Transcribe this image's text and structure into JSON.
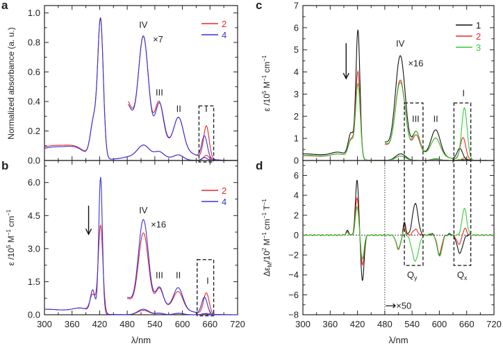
{
  "chart_data": [
    {
      "panel": "a",
      "type": "line",
      "ylabel": [
        {
          "t": "Normalized absorbance (a. u.)"
        }
      ],
      "xlim": [
        300,
        720
      ],
      "ylim": [
        0,
        1.05
      ],
      "yticks": [
        "0.0",
        "0.2",
        "0.4",
        "0.6",
        "0.8",
        "1.0"
      ],
      "ytick_values": [
        0,
        0.2,
        0.4,
        0.6,
        0.8,
        1.0
      ],
      "yminor_step": 0.1,
      "legend": [
        {
          "name": "2",
          "color": "#e8262b"
        },
        {
          "name": "4",
          "color": "#3333dd"
        }
      ],
      "annotations": [
        "IV",
        "×7",
        "III",
        "II",
        "I"
      ],
      "series": [
        {
          "name": "2",
          "color": "#e8262b",
          "x_range": [
            300,
            720
          ],
          "peaks": [
            [
              320,
              0.1,
              45
            ],
            [
              370,
              0.04,
              20
            ],
            [
              422,
              0.93,
              6
            ],
            [
              407,
              0.25,
              7
            ],
            [
              515,
              0.065,
              12
            ],
            [
              550,
              0.03,
              9
            ],
            [
              592,
              0.03,
              10
            ],
            [
              652,
              0.035,
              6
            ],
            [
              520,
              0.04,
              40
            ]
          ]
        },
        {
          "name": "4",
          "color": "#3333dd",
          "x_range": [
            300,
            720
          ],
          "peaks": [
            [
              320,
              0.09,
              45
            ],
            [
              370,
              0.04,
              20
            ],
            [
              422,
              0.93,
              6
            ],
            [
              407,
              0.25,
              7
            ],
            [
              515,
              0.065,
              12
            ],
            [
              550,
              0.03,
              9
            ],
            [
              592,
              0.03,
              10
            ],
            [
              648,
              0.02,
              6
            ],
            [
              520,
              0.04,
              40
            ]
          ]
        },
        {
          "name": "2 ×7",
          "color": "#e8262b",
          "x_range": [
            482,
            720
          ],
          "peaks": [
            [
              515,
              0.76,
              11
            ],
            [
              549,
              0.28,
              9
            ],
            [
              592,
              0.2,
              10
            ],
            [
              652,
              0.22,
              6
            ],
            [
              478,
              0.38,
              14
            ],
            [
              560,
              0.12,
              45
            ]
          ]
        },
        {
          "name": "4 ×7",
          "color": "#3333dd",
          "x_range": [
            482,
            720
          ],
          "peaks": [
            [
              515,
              0.76,
              11
            ],
            [
              550,
              0.27,
              9
            ],
            [
              592,
              0.2,
              10
            ],
            [
              648,
              0.15,
              6
            ],
            [
              478,
              0.36,
              14
            ],
            [
              560,
              0.12,
              45
            ]
          ]
        }
      ]
    },
    {
      "panel": "b",
      "type": "line",
      "ylabel": [
        {
          "t": "ε /10"
        },
        {
          "t": "5",
          "sup": true
        },
        {
          "t": " M"
        },
        {
          "t": "−1",
          "sup": true
        },
        {
          "t": " cm"
        },
        {
          "t": "−1",
          "sup": true
        }
      ],
      "xlabel": "λ/nm",
      "xlim": [
        300,
        720
      ],
      "xticks": [
        "300",
        "360",
        "420",
        "480",
        "540",
        "600",
        "660",
        "720"
      ],
      "xtick_values": [
        300,
        360,
        420,
        480,
        540,
        600,
        660,
        720
      ],
      "ylim": [
        0,
        7.0
      ],
      "yticks": [
        "0.0",
        "1.5",
        "3.0",
        "4.5",
        "6.0"
      ],
      "ytick_values": [
        0,
        1.5,
        3.0,
        4.5,
        6.0
      ],
      "yminor_step": 0.75,
      "legend": [
        {
          "name": "2",
          "color": "#e8262b"
        },
        {
          "name": "4",
          "color": "#3333dd"
        }
      ],
      "annotations": [
        "IV",
        "×16",
        "III",
        "II",
        "I"
      ],
      "series": [
        {
          "name": "2",
          "color": "#e8262b",
          "x_range": [
            300,
            720
          ],
          "peaks": [
            [
              300,
              0.25,
              60
            ],
            [
              380,
              0.2,
              18
            ],
            [
              422,
              4.0,
              5
            ],
            [
              405,
              0.8,
              6
            ],
            [
              515,
              0.2,
              12
            ],
            [
              550,
              0.06,
              9
            ],
            [
              592,
              0.06,
              10
            ],
            [
              652,
              0.06,
              6
            ]
          ]
        },
        {
          "name": "4",
          "color": "#3333dd",
          "x_range": [
            300,
            720
          ],
          "peaks": [
            [
              300,
              0.25,
              60
            ],
            [
              380,
              0.2,
              18
            ],
            [
              422,
              6.2,
              4
            ],
            [
              405,
              1.0,
              5
            ],
            [
              515,
              0.25,
              12
            ],
            [
              550,
              0.07,
              9
            ],
            [
              592,
              0.07,
              10
            ],
            [
              648,
              0.05,
              6
            ]
          ]
        },
        {
          "name": "2 ×16",
          "color": "#e8262b",
          "x_range": [
            480,
            720
          ],
          "peaks": [
            [
              515,
              3.5,
              11
            ],
            [
              550,
              0.85,
              8
            ],
            [
              591,
              0.78,
              10
            ],
            [
              652,
              0.95,
              6
            ],
            [
              478,
              0.65,
              12
            ],
            [
              560,
              0.35,
              45
            ]
          ]
        },
        {
          "name": "4 ×16",
          "color": "#3333dd",
          "x_range": [
            480,
            720
          ],
          "peaks": [
            [
              515,
              4.1,
              11
            ],
            [
              550,
              0.9,
              8
            ],
            [
              591,
              0.95,
              10
            ],
            [
              648,
              0.75,
              6
            ],
            [
              478,
              0.7,
              12
            ],
            [
              560,
              0.35,
              45
            ]
          ]
        }
      ]
    },
    {
      "panel": "c",
      "type": "line",
      "ylabel": [
        {
          "t": "ε /10"
        },
        {
          "t": "5",
          "sup": true
        },
        {
          "t": " M"
        },
        {
          "t": "−1",
          "sup": true
        },
        {
          "t": " cm"
        },
        {
          "t": "−1",
          "sup": true
        }
      ],
      "xlim": [
        300,
        720
      ],
      "ylim": [
        0,
        7
      ],
      "yticks": [
        "0",
        "1",
        "2",
        "3",
        "4",
        "5",
        "6",
        "7"
      ],
      "ytick_values": [
        0,
        1,
        2,
        3,
        4,
        5,
        6,
        7
      ],
      "yminor_step": 0.5,
      "legend": [
        {
          "name": "1",
          "color": "#111111"
        },
        {
          "name": "2",
          "color": "#e8262b"
        },
        {
          "name": "3",
          "color": "#33cc33"
        }
      ],
      "annotations": [
        "IV",
        "×16",
        "III",
        "II",
        "I"
      ],
      "series": [
        {
          "name": "1",
          "color": "#111111",
          "x_range": [
            300,
            720
          ],
          "peaks": [
            [
              300,
              0.3,
              60
            ],
            [
              380,
              0.25,
              18
            ],
            [
              421,
              5.8,
              4.5
            ],
            [
              406,
              1.1,
              6
            ],
            [
              515,
              0.3,
              11
            ],
            [
              592,
              0.07,
              10
            ],
            [
              645,
              0.03,
              6
            ]
          ]
        },
        {
          "name": "2",
          "color": "#e8262b",
          "x_range": [
            300,
            720
          ],
          "peaks": [
            [
              300,
              0.22,
              60
            ],
            [
              380,
              0.2,
              18
            ],
            [
              421,
              3.95,
              5
            ],
            [
              406,
              0.85,
              6
            ],
            [
              515,
              0.2,
              11
            ],
            [
              592,
              0.05,
              10
            ],
            [
              652,
              0.05,
              6
            ]
          ]
        },
        {
          "name": "3",
          "color": "#33cc33",
          "x_range": [
            300,
            720
          ],
          "peaks": [
            [
              300,
              0.24,
              60
            ],
            [
              380,
              0.2,
              18
            ],
            [
              421,
              3.4,
              5
            ],
            [
              406,
              0.8,
              6
            ],
            [
              515,
              0.2,
              11
            ],
            [
              592,
              0.05,
              10
            ],
            [
              655,
              0.12,
              6
            ]
          ]
        },
        {
          "name": "1 ×16",
          "color": "#111111",
          "x_range": [
            480,
            720
          ],
          "peaks": [
            [
              514,
              4.55,
              11
            ],
            [
              549,
              1.0,
              8
            ],
            [
              592,
              1.15,
              10
            ],
            [
              645,
              0.5,
              6
            ],
            [
              478,
              0.75,
              12
            ],
            [
              560,
              0.3,
              45
            ]
          ]
        },
        {
          "name": "2 ×16",
          "color": "#e8262b",
          "x_range": [
            480,
            720
          ],
          "peaks": [
            [
              514,
              3.45,
              11
            ],
            [
              549,
              0.85,
              8
            ],
            [
              592,
              0.78,
              10
            ],
            [
              652,
              1.0,
              6
            ],
            [
              478,
              0.65,
              12
            ],
            [
              560,
              0.3,
              45
            ]
          ]
        },
        {
          "name": "3 ×16",
          "color": "#33cc33",
          "x_range": [
            480,
            720
          ],
          "peaks": [
            [
              514,
              3.35,
              11
            ],
            [
              549,
              1.0,
              8
            ],
            [
              592,
              0.78,
              10
            ],
            [
              655,
              2.35,
              6
            ],
            [
              478,
              0.7,
              12
            ],
            [
              560,
              0.3,
              45
            ]
          ]
        }
      ]
    },
    {
      "panel": "d",
      "type": "line",
      "ylabel": [
        {
          "t": "Δε"
        },
        {
          "t": "M",
          "sub": true
        },
        {
          "t": "/10"
        },
        {
          "t": "2",
          "sup": true
        },
        {
          "t": " M"
        },
        {
          "t": "−1",
          "sup": true
        },
        {
          "t": " cm"
        },
        {
          "t": "−1",
          "sup": true
        },
        {
          "t": " T"
        },
        {
          "t": "−1",
          "sup": true
        }
      ],
      "xlabel": "λ/nm",
      "xlim": [
        300,
        720
      ],
      "xticks": [
        "300",
        "360",
        "420",
        "480",
        "540",
        "600",
        "660",
        "720"
      ],
      "xtick_values": [
        300,
        360,
        420,
        480,
        540,
        600,
        660,
        720
      ],
      "ylim": [
        -8,
        7.5
      ],
      "yticks": [
        "−8",
        "−6",
        "−4",
        "−2",
        "0",
        "2",
        "4",
        "6"
      ],
      "ytick_values": [
        -8,
        -6,
        -4,
        -2,
        0,
        2,
        4,
        6
      ],
      "yminor_step": 1,
      "annotations": [
        "Q",
        "y",
        "Q",
        "x",
        "×50"
      ],
      "series": [
        {
          "name": "1",
          "color": "#111111",
          "x_range": [
            300,
            720
          ],
          "peaks": [
            [
              398,
              0.45,
              3
            ],
            [
              419,
              5.6,
              3.5
            ],
            [
              431,
              -4.6,
              3.5
            ],
            [
              510,
              -1.3,
              5
            ],
            [
              523,
              1.3,
              3
            ],
            [
              547,
              3.2,
              6
            ],
            [
              583,
              0.15,
              4
            ],
            [
              600,
              -2.0,
              5
            ],
            [
              623,
              0.12,
              4
            ],
            [
              645,
              -1.8,
              6
            ]
          ]
        },
        {
          "name": "2",
          "color": "#e8262b",
          "x_range": [
            300,
            720
          ],
          "peaks": [
            [
              398,
              0.3,
              3
            ],
            [
              419,
              3.8,
              3.5
            ],
            [
              431,
              -3.0,
              3.5
            ],
            [
              510,
              -1.4,
              5
            ],
            [
              523,
              0.9,
              3
            ],
            [
              547,
              0.6,
              5
            ],
            [
              600,
              -1.9,
              5
            ],
            [
              643,
              -0.9,
              5
            ],
            [
              656,
              0.7,
              4
            ]
          ]
        },
        {
          "name": "3",
          "color": "#33cc33",
          "x_range": [
            300,
            720
          ],
          "peaks": [
            [
              398,
              0.25,
              3
            ],
            [
              419,
              2.9,
              3.5
            ],
            [
              431,
              -2.4,
              3.5
            ],
            [
              510,
              -1.3,
              5
            ],
            [
              522,
              0.6,
              3
            ],
            [
              547,
              -2.6,
              7
            ],
            [
              601,
              -2.1,
              5
            ],
            [
              655,
              2.7,
              5
            ]
          ]
        }
      ]
    }
  ]
}
